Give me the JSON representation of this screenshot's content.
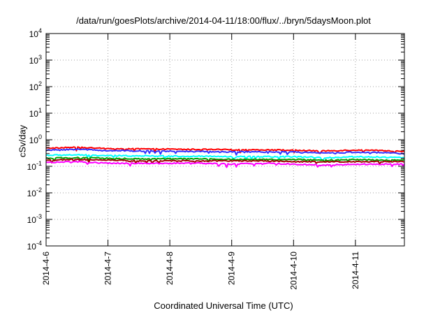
{
  "chart_data": {
    "type": "line",
    "title": "/data/run/goesPlots/archive/2014-04-11/18:00/flux/../bryn/5daysMoon.plot",
    "xlabel": "Coordinated Universal Time (UTC)",
    "ylabel": "cSv/day",
    "yscale": "log",
    "ylim": [
      0.0001,
      10000
    ],
    "xlim": [
      "2014-04-06 00:00",
      "2014-04-11 19:00"
    ],
    "grid": true,
    "legend": "none",
    "y_ticks": [
      {
        "base": "10",
        "exp": "-4",
        "value": 0.0001
      },
      {
        "base": "10",
        "exp": "-3",
        "value": 0.001
      },
      {
        "base": "10",
        "exp": "-2",
        "value": 0.01
      },
      {
        "base": "10",
        "exp": "-1",
        "value": 0.1
      },
      {
        "base": "10",
        "exp": "0",
        "value": 1
      },
      {
        "base": "10",
        "exp": "1",
        "value": 10
      },
      {
        "base": "10",
        "exp": "2",
        "value": 100
      },
      {
        "base": "10",
        "exp": "3",
        "value": 1000
      },
      {
        "base": "10",
        "exp": "4",
        "value": 10000
      }
    ],
    "x_ticks": [
      "2014-4-6",
      "2014-4-7",
      "2014-4-8",
      "2014-4-9",
      "2014-4-10",
      "2014-4-11"
    ],
    "x_tick_dates": [
      "2014-04-06",
      "2014-04-07",
      "2014-04-08",
      "2014-04-09",
      "2014-04-10",
      "2014-04-11"
    ],
    "series": [
      {
        "color": "#ff0000",
        "x": [
          "2014-04-06",
          "2014-04-06 12:00",
          "2014-04-07",
          "2014-04-07 12:00",
          "2014-04-08",
          "2014-04-08 12:00",
          "2014-04-09",
          "2014-04-09 12:00",
          "2014-04-10",
          "2014-04-10 12:00",
          "2014-04-11",
          "2014-04-11 12:00",
          "2014-04-11 19:00"
        ],
        "values": [
          0.48,
          0.52,
          0.46,
          0.45,
          0.44,
          0.43,
          0.42,
          0.42,
          0.4,
          0.38,
          0.41,
          0.38,
          0.36
        ]
      },
      {
        "color": "#3030ff",
        "x": [
          "2014-04-06",
          "2014-04-06 12:00",
          "2014-04-07",
          "2014-04-07 12:00",
          "2014-04-08",
          "2014-04-08 12:00",
          "2014-04-09",
          "2014-04-09 12:00",
          "2014-04-10",
          "2014-04-10 12:00",
          "2014-04-11",
          "2014-04-11 12:00",
          "2014-04-11 19:00"
        ],
        "values": [
          0.4,
          0.44,
          0.39,
          0.38,
          0.37,
          0.36,
          0.35,
          0.35,
          0.34,
          0.31,
          0.34,
          0.32,
          0.3
        ]
      },
      {
        "color": "#00ffff",
        "x": [
          "2014-04-06",
          "2014-04-06 12:00",
          "2014-04-07",
          "2014-04-07 12:00",
          "2014-04-08",
          "2014-04-08 12:00",
          "2014-04-09",
          "2014-04-09 12:00",
          "2014-04-10",
          "2014-04-10 12:00",
          "2014-04-11",
          "2014-04-11 12:00",
          "2014-04-11 19:00"
        ],
        "values": [
          0.26,
          0.27,
          0.25,
          0.25,
          0.24,
          0.24,
          0.23,
          0.23,
          0.23,
          0.21,
          0.23,
          0.22,
          0.21
        ]
      },
      {
        "color": "#00a000",
        "x": [
          "2014-04-06",
          "2014-04-06 12:00",
          "2014-04-07",
          "2014-04-07 12:00",
          "2014-04-08",
          "2014-04-08 12:00",
          "2014-04-09",
          "2014-04-09 12:00",
          "2014-04-10",
          "2014-04-10 12:00",
          "2014-04-11",
          "2014-04-11 12:00",
          "2014-04-11 19:00"
        ],
        "values": [
          0.2,
          0.21,
          0.2,
          0.19,
          0.19,
          0.19,
          0.18,
          0.18,
          0.18,
          0.17,
          0.18,
          0.17,
          0.17
        ]
      },
      {
        "color": "#a00000",
        "x": [
          "2014-04-06",
          "2014-04-06 12:00",
          "2014-04-07",
          "2014-04-07 12:00",
          "2014-04-08",
          "2014-04-08 12:00",
          "2014-04-09",
          "2014-04-09 12:00",
          "2014-04-10",
          "2014-04-10 12:00",
          "2014-04-11",
          "2014-04-11 12:00",
          "2014-04-11 19:00"
        ],
        "values": [
          0.17,
          0.18,
          0.17,
          0.16,
          0.16,
          0.16,
          0.16,
          0.16,
          0.15,
          0.15,
          0.15,
          0.15,
          0.15
        ]
      },
      {
        "color": "#ff00ff",
        "x": [
          "2014-04-06",
          "2014-04-06 12:00",
          "2014-04-07",
          "2014-04-07 12:00",
          "2014-04-08",
          "2014-04-08 12:00",
          "2014-04-09",
          "2014-04-09 12:00",
          "2014-04-10",
          "2014-04-10 12:00",
          "2014-04-11",
          "2014-04-11 12:00",
          "2014-04-11 19:00"
        ],
        "values": [
          0.14,
          0.15,
          0.13,
          0.13,
          0.13,
          0.13,
          0.12,
          0.13,
          0.12,
          0.11,
          0.12,
          0.12,
          0.12
        ]
      }
    ]
  }
}
